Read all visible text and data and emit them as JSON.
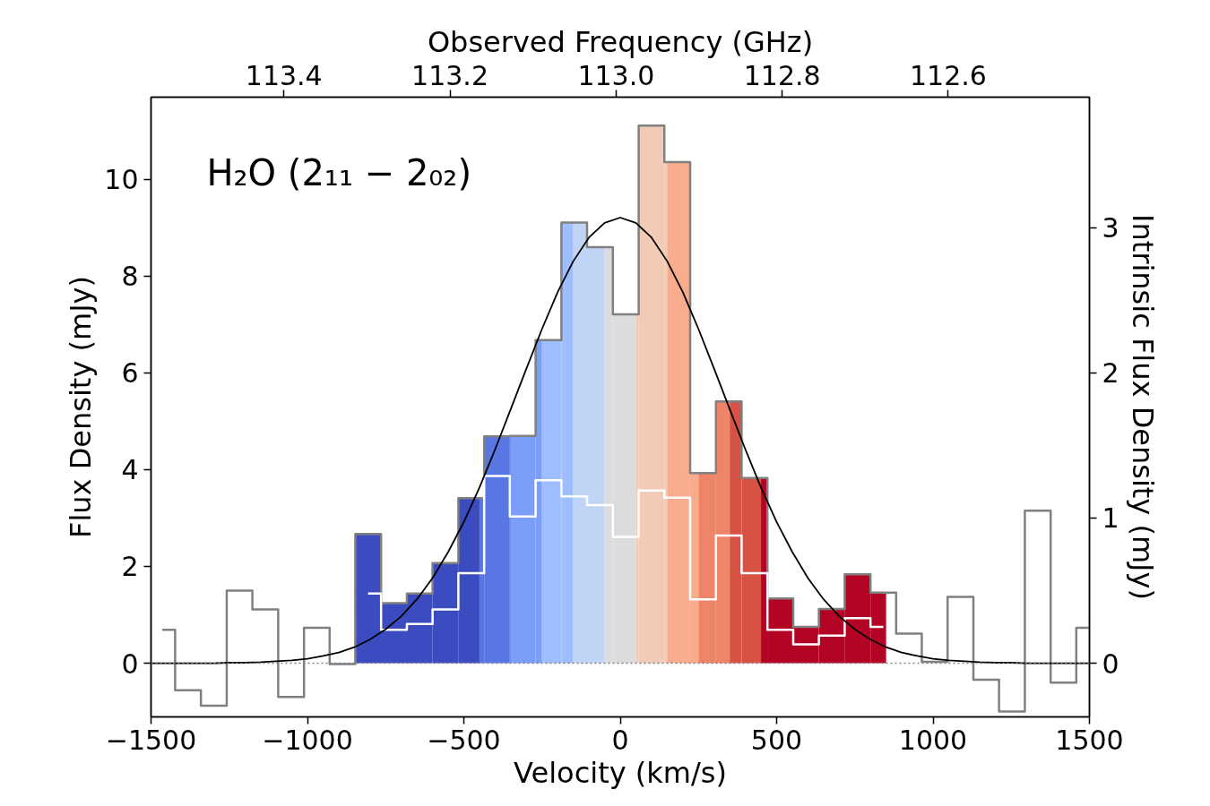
{
  "chart_data": {
    "type": "histogram",
    "xlabel": "Velocity (km/s)",
    "ylabel": "Flux Density (mJy)",
    "y2label": "Intrinsic Flux Density (mJy)",
    "x2label": "Observed Frequency (GHz)",
    "annotations": [
      "H₂O (2₁₁ − 2₀₂)"
    ],
    "xlim": [
      -1500,
      1500
    ],
    "xticks": [
      {
        "value": -1500,
        "label": "−1500"
      },
      {
        "value": -1000,
        "label": "−1000"
      },
      {
        "value": -500,
        "label": "−500"
      },
      0,
      500,
      1000,
      1500
    ],
    "ylim": [
      -1.11,
      11.7
    ],
    "yticks": [
      0,
      2,
      4,
      6,
      8,
      10
    ],
    "y2lim": [
      -0.37,
      3.9
    ],
    "y2ticks": [
      0,
      1,
      2,
      3
    ],
    "x2lim": [
      113.56,
      112.43
    ],
    "x2ticks": [
      113.4,
      113.2,
      {
        "value": 113.0,
        "label": "113.0"
      },
      112.8,
      112.6
    ],
    "ref_lines": [
      {
        "axis": "y",
        "value": 0,
        "color": "#808080",
        "line_style": "dotted"
      }
    ],
    "series": [
      {
        "bins": [
          -847,
          -765,
          -682,
          -600,
          -518,
          -450,
          -435,
          -353,
          -350,
          -271,
          -250,
          -188,
          -150,
          -106,
          -50,
          -24,
          50,
          59,
          141,
          150,
          223,
          250,
          306,
          350,
          388,
          450,
          470,
          553,
          635,
          717,
          800,
          850
        ],
        "values": [
          2.67,
          1.24,
          1.44,
          2.07,
          3.41,
          3.41,
          4.69,
          4.7,
          4.7,
          6.68,
          6.68,
          9.11,
          9.11,
          8.6,
          8.6,
          7.21,
          7.21,
          11.11,
          10.36,
          10.36,
          3.93,
          3.93,
          5.41,
          5.41,
          3.83,
          3.83,
          1.34,
          0.75,
          1.12,
          1.84,
          1.46
        ],
        "colors": [
          "#3b4cc0",
          "#3b4cc0",
          "#3b4cc0",
          "#3b4cc0",
          "#3b4cc0",
          "#5977e3",
          "#5977e3",
          "#5977e3",
          "#7b9ff9",
          "#7b9ff9",
          "#9ebeff",
          "#9ebeff",
          "#c0d4f5",
          "#c0d4f5",
          "#dddcdc",
          "#dddcdc",
          "#f2cbb7",
          "#f2cbb7",
          "#f2cbb7",
          "#f7ac8e",
          "#f7ac8e",
          "#ee8468",
          "#ee8468",
          "#d65244",
          "#d65244",
          "#b40426",
          "#b40426",
          "#b40426",
          "#b40426",
          "#b40426",
          "#b40426"
        ]
      },
      {
        "type": "step",
        "color": "#808080",
        "x": [
          -1464,
          -1382,
          -1299,
          -1217,
          -1135,
          -1052,
          -970,
          -888,
          -806,
          -723,
          -641,
          -559,
          -476,
          -394,
          -312,
          -229,
          -147,
          -65,
          18,
          100,
          182,
          265,
          347,
          429,
          512,
          594,
          676,
          759,
          841,
          923,
          1005,
          1088,
          1170,
          1252,
          1335,
          1417,
          1499
        ],
        "values": [
          0.69,
          -0.56,
          -0.88,
          1.5,
          1.11,
          -0.7,
          0.73,
          -0.02,
          2.67,
          1.24,
          1.44,
          2.07,
          3.41,
          4.69,
          4.7,
          6.68,
          9.11,
          8.6,
          7.21,
          11.11,
          10.36,
          3.93,
          5.41,
          3.83,
          1.34,
          0.75,
          1.12,
          1.84,
          1.46,
          0.61,
          0.03,
          1.37,
          -0.34,
          -1.0,
          3.15,
          -0.4,
          0.73
        ]
      },
      {
        "type": "step",
        "axis": "y2",
        "color": "#ffffff",
        "x": [
          -806,
          -723,
          -641,
          -559,
          -476,
          -394,
          -312,
          -229,
          -147,
          -65,
          18,
          100,
          182,
          265,
          347,
          429,
          512,
          594,
          676,
          759,
          841
        ],
        "values": [
          0.48,
          0.23,
          0.27,
          0.37,
          0.62,
          1.29,
          1.01,
          1.26,
          1.15,
          1.09,
          0.87,
          1.19,
          1.14,
          0.44,
          0.88,
          0.62,
          0.23,
          0.13,
          0.19,
          0.31,
          0.25
        ]
      },
      {
        "type": "line",
        "color": "#000000",
        "x": [
          -1500,
          -1450,
          -1400,
          -1350,
          -1300,
          -1250,
          -1200,
          -1150,
          -1100,
          -1050,
          -1000,
          -950,
          -900,
          -850,
          -800,
          -750,
          -700,
          -650,
          -600,
          -550,
          -500,
          -450,
          -400,
          -350,
          -300,
          -250,
          -200,
          -150,
          -100,
          -50,
          0,
          50,
          100,
          150,
          200,
          250,
          300,
          350,
          400,
          450,
          500,
          550,
          600,
          650,
          700,
          750,
          800,
          850,
          900,
          950,
          1000,
          1050,
          1100,
          1150,
          1200,
          1250,
          1300,
          1350,
          1400,
          1450,
          1500
        ],
        "values": [
          0,
          0,
          0,
          0,
          0,
          0.01,
          0.01,
          0.02,
          0.04,
          0.06,
          0.09,
          0.15,
          0.22,
          0.33,
          0.49,
          0.7,
          0.97,
          1.32,
          1.76,
          2.3,
          2.92,
          3.63,
          4.42,
          5.25,
          6.09,
          6.91,
          7.67,
          8.31,
          8.8,
          9.1,
          9.21,
          9.1,
          8.8,
          8.31,
          7.67,
          6.91,
          6.09,
          5.25,
          4.42,
          3.63,
          2.92,
          2.3,
          1.76,
          1.32,
          0.97,
          0.7,
          0.49,
          0.33,
          0.22,
          0.15,
          0.09,
          0.06,
          0.04,
          0.02,
          0.01,
          0.01,
          0,
          0,
          0,
          0,
          0
        ]
      }
    ]
  }
}
